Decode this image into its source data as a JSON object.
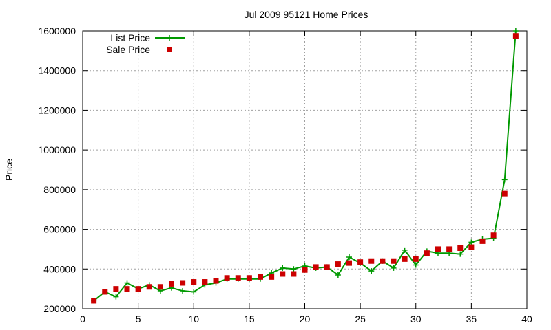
{
  "chart_data": {
    "type": "line",
    "title": "Jul 2009 95121 Home Prices",
    "xlabel": "",
    "ylabel": "Price",
    "xlim": [
      0,
      40
    ],
    "ylim": [
      200000,
      1600000
    ],
    "xticks": [
      0,
      5,
      10,
      15,
      20,
      25,
      30,
      35,
      40
    ],
    "yticks": [
      200000,
      400000,
      600000,
      800000,
      1000000,
      1200000,
      1400000,
      1600000
    ],
    "grid": true,
    "legend": "top-left",
    "series": [
      {
        "name": "List Price",
        "style": "line-with-plus-markers",
        "color": "#009900",
        "x": [
          1,
          2,
          3,
          4,
          5,
          6,
          7,
          8,
          9,
          10,
          11,
          12,
          13,
          14,
          15,
          16,
          17,
          18,
          19,
          20,
          21,
          22,
          23,
          24,
          25,
          26,
          27,
          28,
          29,
          30,
          31,
          32,
          33,
          34,
          35,
          36,
          37,
          38,
          39
        ],
        "y": [
          240000,
          285000,
          260000,
          330000,
          300000,
          320000,
          290000,
          305000,
          290000,
          285000,
          320000,
          330000,
          350000,
          350000,
          350000,
          350000,
          380000,
          405000,
          400000,
          415000,
          405000,
          410000,
          370000,
          460000,
          430000,
          390000,
          440000,
          405000,
          495000,
          420000,
          490000,
          480000,
          480000,
          475000,
          535000,
          550000,
          555000,
          850000,
          1600000
        ]
      },
      {
        "name": "Sale Price",
        "style": "square-markers",
        "color": "#cc0000",
        "x": [
          1,
          2,
          3,
          4,
          5,
          6,
          7,
          8,
          9,
          10,
          11,
          12,
          13,
          14,
          15,
          16,
          17,
          18,
          19,
          20,
          21,
          22,
          23,
          24,
          25,
          26,
          27,
          28,
          29,
          30,
          31,
          32,
          33,
          34,
          35,
          36,
          37,
          38,
          39
        ],
        "y": [
          240000,
          285000,
          300000,
          300000,
          300000,
          310000,
          310000,
          325000,
          330000,
          335000,
          335000,
          340000,
          355000,
          355000,
          355000,
          360000,
          360000,
          375000,
          375000,
          395000,
          410000,
          410000,
          425000,
          430000,
          435000,
          440000,
          440000,
          440000,
          450000,
          450000,
          480000,
          500000,
          500000,
          505000,
          510000,
          540000,
          570000,
          780000,
          1575000
        ]
      }
    ]
  }
}
